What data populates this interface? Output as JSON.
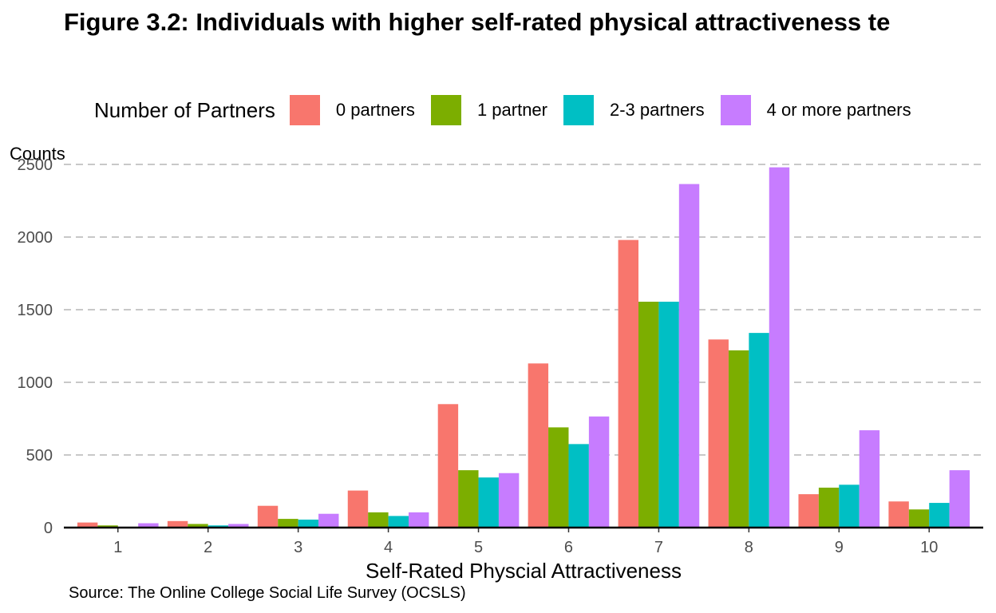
{
  "chart_data": {
    "type": "bar",
    "title": "Figure 3.2: Individuals with higher self-rated physical attractiveness te",
    "xlabel": "Self-Rated Physcial Attractiveness",
    "ylabel": "Counts",
    "caption": "Source: The Online College Social Life Survey (OCSLS)",
    "legend_title": "Number of Partners",
    "legend_position": "top",
    "categories": [
      "1",
      "2",
      "3",
      "4",
      "5",
      "6",
      "7",
      "8",
      "9",
      "10"
    ],
    "series": [
      {
        "name": "0 partners",
        "color": "#F8766D",
        "values": [
          35,
          45,
          150,
          255,
          850,
          1130,
          1980,
          1295,
          230,
          180
        ]
      },
      {
        "name": "1 partner",
        "color": "#7CAE00",
        "values": [
          15,
          25,
          60,
          105,
          395,
          690,
          1555,
          1220,
          275,
          125
        ]
      },
      {
        "name": "2-3 partners",
        "color": "#00BFC4",
        "values": [
          5,
          15,
          55,
          80,
          345,
          575,
          1555,
          1340,
          295,
          170
        ]
      },
      {
        "name": "4 or more partners",
        "color": "#C77CFF",
        "values": [
          30,
          25,
          95,
          105,
          375,
          765,
          2365,
          2480,
          670,
          395
        ]
      }
    ],
    "y_ticks": [
      "0",
      "500",
      "1000",
      "1500",
      "2000",
      "2500"
    ],
    "ylim": [
      0,
      2500
    ],
    "grid": "horizontal dashed"
  }
}
